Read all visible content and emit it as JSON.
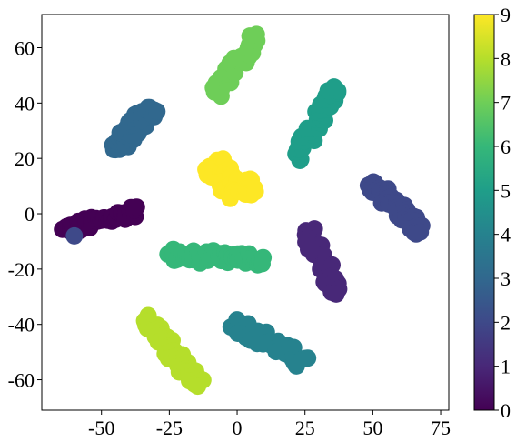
{
  "chart_data": {
    "type": "scatter",
    "title": "",
    "xlabel": "",
    "ylabel": "",
    "xlim": [
      -72,
      78
    ],
    "ylim": [
      -71,
      72
    ],
    "xticks": [
      -50,
      -25,
      0,
      25,
      50,
      75
    ],
    "xtick_labels": [
      "-50",
      "-25",
      "0",
      "25",
      "50",
      "75"
    ],
    "yticks": [
      -60,
      -40,
      -20,
      0,
      20,
      40,
      60
    ],
    "ytick_labels": [
      "-60",
      "-40",
      "-20",
      "0",
      "20",
      "40",
      "60"
    ],
    "grid": false,
    "colorbar": {
      "colormap": "viridis",
      "range": [
        0,
        9
      ],
      "ticks": [
        0,
        1,
        2,
        3,
        4,
        5,
        6,
        7,
        8,
        9
      ],
      "tick_labels": [
        "0",
        "1",
        "2",
        "3",
        "4",
        "5",
        "6",
        "7",
        "8",
        "9"
      ]
    },
    "clusters": [
      {
        "label": 0,
        "color": "#440154",
        "from": [
          -64,
          -6
        ],
        "to": [
          -37,
          1
        ],
        "width": 4
      },
      {
        "label": 1,
        "color": "#482878",
        "from": [
          26,
          -6
        ],
        "to": [
          37,
          -29
        ],
        "width": 5
      },
      {
        "label": 2,
        "color": "#3e4989",
        "from": [
          49,
          11
        ],
        "to": [
          68,
          -6
        ],
        "width": 5
      },
      {
        "label": 3,
        "color": "#31688e",
        "from": [
          -45,
          23
        ],
        "to": [
          -31,
          39
        ],
        "width": 6
      },
      {
        "label": 4,
        "color": "#26828e",
        "from": [
          -1,
          -39
        ],
        "to": [
          25,
          -54
        ],
        "width": 5
      },
      {
        "label": 5,
        "color": "#1f9e89",
        "from": [
          22,
          20
        ],
        "to": [
          36,
          45
        ],
        "width": 5
      },
      {
        "label": 6,
        "color": "#35b779",
        "from": [
          -25,
          -15
        ],
        "to": [
          10,
          -17
        ],
        "width": 4
      },
      {
        "label": 7,
        "color": "#6ece58",
        "from": [
          -8,
          43
        ],
        "to": [
          7,
          64
        ],
        "width": 5
      },
      {
        "label": 8,
        "color": "#b5de2b",
        "from": [
          -33,
          -37
        ],
        "to": [
          -14,
          -62
        ],
        "width": 5
      },
      {
        "label": 9,
        "color": "#fde725",
        "from": [
          -10,
          18
        ],
        "to": [
          5,
          6
        ],
        "width": 9
      }
    ],
    "outlier_points": [
      {
        "label": 2,
        "color": "#3e4989",
        "x": -60,
        "y": -8
      }
    ]
  }
}
